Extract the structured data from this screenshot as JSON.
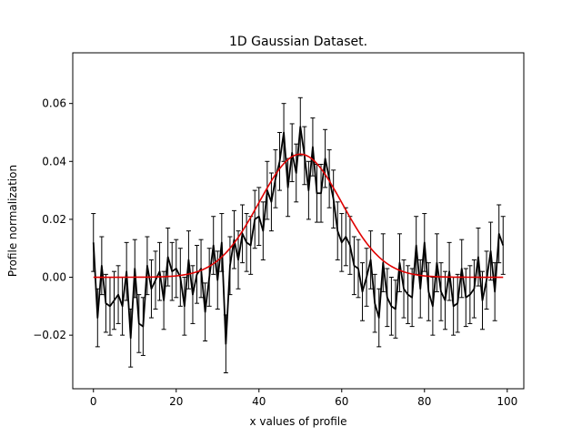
{
  "chart_data": {
    "type": "line",
    "title": "1D Gaussian Dataset.",
    "xlabel": "x values of profile",
    "ylabel": "Profile normalization",
    "xlim": [
      -5,
      104
    ],
    "ylim": [
      -0.0385,
      0.0775
    ],
    "xticks": [
      0,
      20,
      40,
      60,
      80,
      100
    ],
    "yticks": [
      -0.02,
      0.0,
      0.02,
      0.04,
      0.06
    ],
    "ytick_labels": [
      "−0.02",
      "0.00",
      "0.02",
      "0.04",
      "0.06"
    ],
    "grid": false,
    "series": [
      {
        "name": "",
        "kind": "errorbar",
        "color": "#000000",
        "yerr": 0.01,
        "x": [
          0,
          1,
          2,
          3,
          4,
          5,
          6,
          7,
          8,
          9,
          10,
          11,
          12,
          13,
          14,
          15,
          16,
          17,
          18,
          19,
          20,
          21,
          22,
          23,
          24,
          25,
          26,
          27,
          28,
          29,
          30,
          31,
          32,
          33,
          34,
          35,
          36,
          37,
          38,
          39,
          40,
          41,
          42,
          43,
          44,
          45,
          46,
          47,
          48,
          49,
          50,
          51,
          52,
          53,
          54,
          55,
          56,
          57,
          58,
          59,
          60,
          61,
          62,
          63,
          64,
          65,
          66,
          67,
          68,
          69,
          70,
          71,
          72,
          73,
          74,
          75,
          76,
          77,
          78,
          79,
          80,
          81,
          82,
          83,
          84,
          85,
          86,
          87,
          88,
          89,
          90,
          91,
          92,
          93,
          94,
          95,
          96,
          97,
          98,
          99
        ],
        "y": [
          0.012,
          -0.014,
          0.004,
          -0.009,
          -0.01,
          -0.008,
          -0.006,
          -0.01,
          0.002,
          -0.021,
          0.003,
          -0.016,
          -0.017,
          0.004,
          -0.004,
          -0.001,
          0.002,
          -0.008,
          0.007,
          0.002,
          0.003,
          0.0,
          -0.01,
          0.006,
          -0.006,
          0.001,
          0.003,
          -0.012,
          0.0,
          0.011,
          -0.001,
          0.012,
          -0.023,
          0.004,
          0.013,
          0.006,
          0.015,
          0.012,
          0.011,
          0.02,
          0.021,
          0.016,
          0.03,
          0.026,
          0.034,
          0.04,
          0.05,
          0.031,
          0.043,
          0.036,
          0.052,
          0.042,
          0.03,
          0.045,
          0.029,
          0.029,
          0.041,
          0.034,
          0.027,
          0.016,
          0.012,
          0.014,
          0.011,
          0.004,
          0.003,
          -0.005,
          0.0,
          0.006,
          -0.009,
          -0.014,
          0.005,
          -0.007,
          -0.01,
          -0.011,
          0.005,
          -0.004,
          -0.006,
          -0.007,
          0.011,
          -0.004,
          0.012,
          -0.005,
          -0.01,
          0.005,
          -0.005,
          -0.008,
          0.002,
          -0.01,
          -0.009,
          0.003,
          -0.007,
          -0.006,
          -0.004,
          0.007,
          -0.008,
          -0.001,
          0.009,
          -0.005,
          0.015,
          0.011
        ]
      },
      {
        "name": "",
        "kind": "line",
        "color": "#e00000",
        "amplitude": 0.0425,
        "mean": 50,
        "sigma": 10,
        "x_range": [
          0,
          99
        ]
      }
    ]
  }
}
